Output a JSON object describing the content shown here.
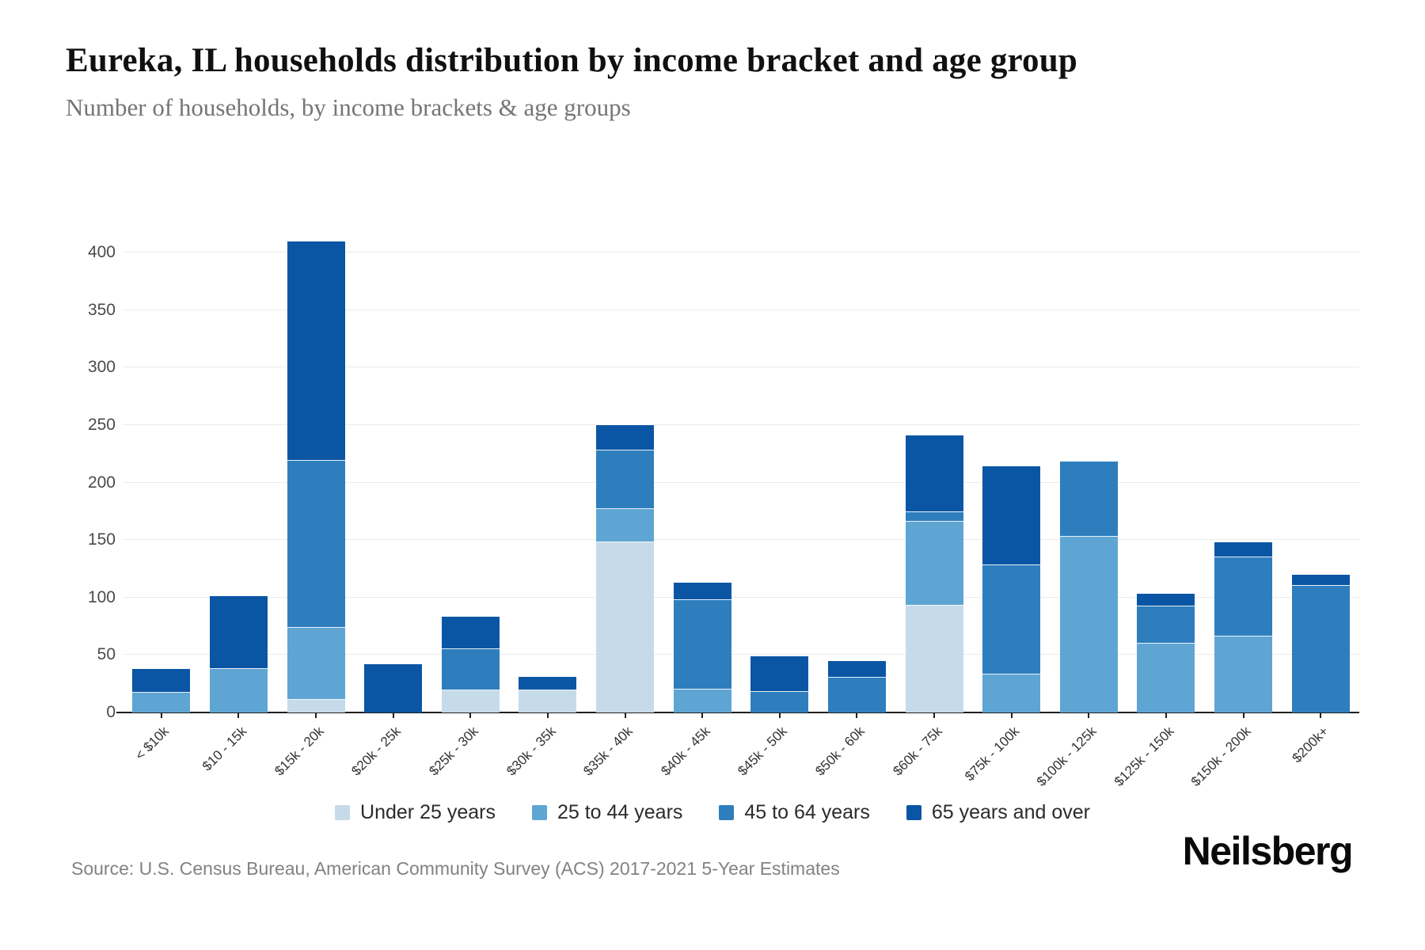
{
  "header": {
    "title": "Eureka, IL households distribution by income bracket and age group",
    "subtitle": "Number of households, by income brackets & age groups"
  },
  "chart_data": {
    "type": "bar",
    "stacked": true,
    "title": "Eureka, IL households distribution by income bracket and age group",
    "xlabel": "",
    "ylabel": "Number of households",
    "ylim": [
      0,
      400
    ],
    "yticks": [
      0,
      50,
      100,
      150,
      200,
      250,
      300,
      350,
      400
    ],
    "grid": "horizontal",
    "legend_position": "bottom",
    "categories": [
      "< $10k",
      "$10 - 15k",
      "$15k - 20k",
      "$20k - 25k",
      "$25k - 30k",
      "$30k - 35k",
      "$35k - 40k",
      "$40k - 45k",
      "$45k - 50k",
      "$50k - 60k",
      "$60k - 75k",
      "$75k - 100k",
      "$100k - 125k",
      "$125k - 150k",
      "$150k - 200k",
      "$200k+"
    ],
    "series": [
      {
        "name": "Under 25 years",
        "color": "#c6dbea",
        "values": [
          0,
          0,
          11,
          0,
          19,
          19,
          148,
          0,
          0,
          0,
          93,
          0,
          0,
          0,
          0,
          0
        ]
      },
      {
        "name": "25 to 44 years",
        "color": "#5ea5d4",
        "values": [
          17,
          38,
          63,
          0,
          0,
          0,
          29,
          20,
          0,
          0,
          73,
          33,
          153,
          60,
          66,
          0
        ]
      },
      {
        "name": "45 to 64 years",
        "color": "#2e7ebd",
        "values": [
          0,
          0,
          145,
          0,
          36,
          0,
          51,
          78,
          18,
          30,
          8,
          95,
          65,
          32,
          69,
          110
        ]
      },
      {
        "name": "65 years and over",
        "color": "#0b56a4",
        "values": [
          21,
          63,
          191,
          42,
          28,
          12,
          22,
          15,
          31,
          15,
          67,
          86,
          0,
          11,
          13,
          10
        ]
      }
    ],
    "totals": [
      38,
      101,
      410,
      42,
      83,
      31,
      250,
      113,
      49,
      45,
      241,
      214,
      218,
      103,
      148,
      120
    ]
  },
  "footer": {
    "source": "Source: U.S. Census Bureau, American Community Survey (ACS) 2017-2021 5-Year Estimates",
    "brand": "Neilsberg"
  }
}
